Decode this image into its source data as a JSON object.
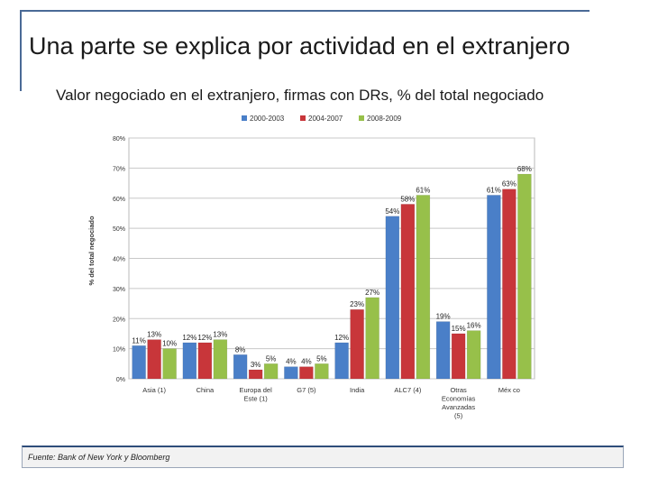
{
  "slide": {
    "title": "Una parte se explica por actividad en el extranjero",
    "subtitle": "Valor negociado en el extranjero, firmas con DRs, % del total negociado",
    "source": "Fuente: Bank of New York y Bloomberg"
  },
  "chart_data": {
    "type": "bar",
    "title": "",
    "xlabel": "",
    "ylabel": "% del total negociado",
    "ylim": [
      0,
      80
    ],
    "yticks": [
      0,
      10,
      20,
      30,
      40,
      50,
      60,
      70,
      80
    ],
    "ytick_labels": [
      "0%",
      "10%",
      "20%",
      "30%",
      "40%",
      "50%",
      "60%",
      "70%",
      "80%"
    ],
    "legend_position": "top",
    "grid": true,
    "categories": [
      [
        "Asia (1)"
      ],
      [
        "China"
      ],
      [
        "Europa del",
        "Este (1)"
      ],
      [
        "G7 (5)"
      ],
      [
        "India"
      ],
      [
        "ALC7 (4)"
      ],
      [
        "Otras",
        "Economías",
        "Avanzadas",
        "(5)"
      ],
      [
        "Méx co"
      ]
    ],
    "series": [
      {
        "name": "2000-2003",
        "color": "#4a7fc8",
        "values": [
          11,
          12,
          8,
          4,
          12,
          54,
          19,
          61
        ]
      },
      {
        "name": "2004-2007",
        "color": "#c8363a",
        "values": [
          13,
          12,
          3,
          4,
          23,
          58,
          15,
          63
        ]
      },
      {
        "name": "2008-2009",
        "color": "#97c04a",
        "values": [
          10,
          13,
          5,
          5,
          27,
          61,
          16,
          68
        ]
      }
    ]
  }
}
